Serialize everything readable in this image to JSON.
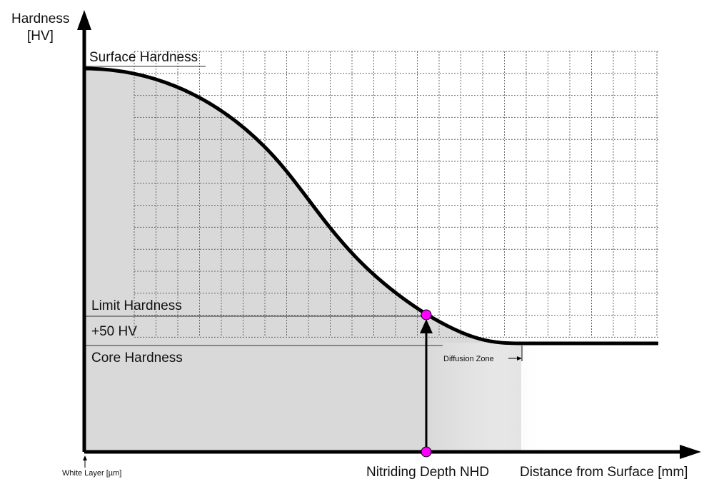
{
  "axes": {
    "y_label_line1": "Hardness",
    "y_label_line2": "[HV]",
    "x_label": "Distance from Surface [mm]"
  },
  "levels": {
    "surface": "Surface Hardness",
    "limit": "Limit Hardness",
    "offset": "+50 HV",
    "core": "Core Hardness"
  },
  "annotations": {
    "nhd": "Nitriding Depth NHD",
    "white_layer": "White Layer [µm]",
    "diffusion_zone": "Diffusion Zone"
  },
  "colors": {
    "curve": "#000000",
    "fill": "#d9d9d9",
    "grid": "#555555",
    "marker": "#ff00ff"
  },
  "icons": {
    "marker": "circle-marker-icon",
    "arrow": "up-arrow-icon"
  }
}
